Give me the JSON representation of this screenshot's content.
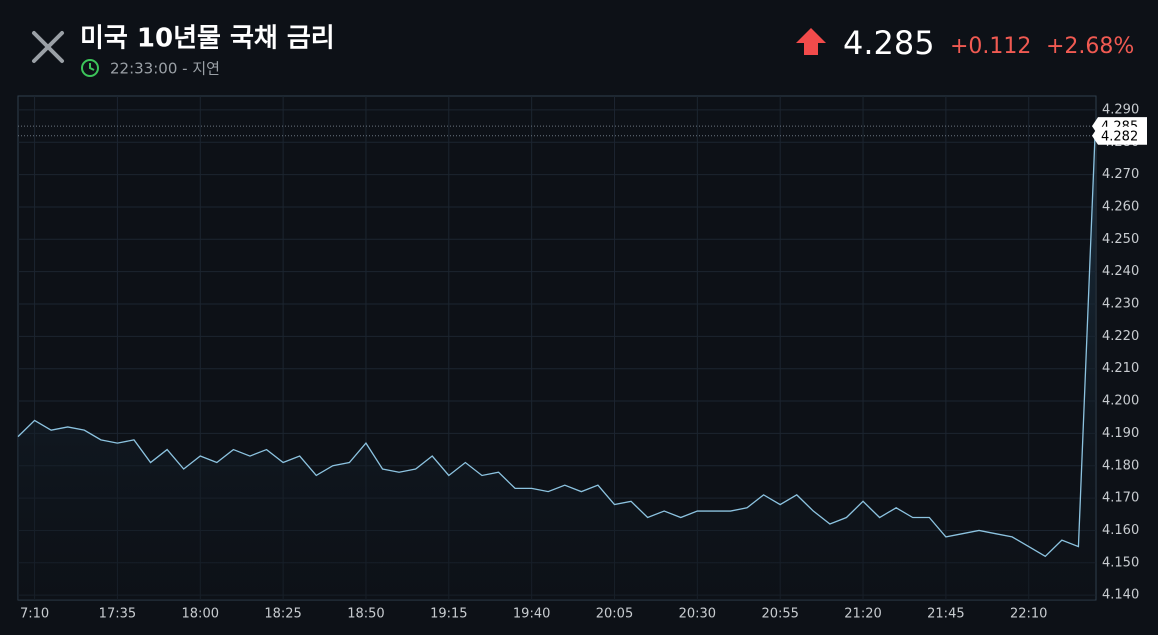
{
  "header": {
    "title": "미국 10년물 국채 금리",
    "time": "22:33:00 - 지연",
    "price": "4.285",
    "change": "+0.112",
    "change_pct": "+2.68%"
  },
  "chart_data": {
    "type": "line",
    "color": "#8cc3e0",
    "categories": [
      null,
      "7:10",
      null,
      null,
      null,
      null,
      "17:35",
      null,
      null,
      null,
      null,
      "18:00",
      null,
      null,
      null,
      null,
      "18:25",
      null,
      null,
      null,
      null,
      "18:50",
      null,
      null,
      null,
      null,
      "19:15",
      null,
      null,
      null,
      null,
      "19:40",
      null,
      null,
      null,
      null,
      "20:05",
      null,
      null,
      null,
      null,
      "20:30",
      null,
      null,
      null,
      null,
      "20:55",
      null,
      null,
      null,
      null,
      "21:20",
      null,
      null,
      null,
      null,
      "21:45",
      null,
      null,
      null,
      null,
      "22:10",
      null,
      null,
      null,
      null
    ],
    "values": [
      4.189,
      4.194,
      4.191,
      4.192,
      4.191,
      4.188,
      4.187,
      4.188,
      4.181,
      4.185,
      4.179,
      4.183,
      4.181,
      4.185,
      4.183,
      4.185,
      4.181,
      4.183,
      4.177,
      4.18,
      4.181,
      4.187,
      4.179,
      4.178,
      4.179,
      4.183,
      4.177,
      4.181,
      4.177,
      4.178,
      4.173,
      4.173,
      4.172,
      4.174,
      4.172,
      4.174,
      4.168,
      4.169,
      4.164,
      4.166,
      4.164,
      4.166,
      4.166,
      4.166,
      4.167,
      4.171,
      4.168,
      4.171,
      4.166,
      4.162,
      4.164,
      4.169,
      4.164,
      4.167,
      4.164,
      4.164,
      4.158,
      4.159,
      4.16,
      4.159,
      4.158,
      4.155,
      4.152,
      4.157,
      4.155,
      4.282
    ],
    "ylim": [
      4.1385,
      4.2943
    ],
    "yticks": [
      {
        "value": 4.14,
        "label": "4.140"
      },
      {
        "value": 4.15,
        "label": "4.150"
      },
      {
        "value": 4.16,
        "label": "4.160"
      },
      {
        "value": 4.17,
        "label": "4.170"
      },
      {
        "value": 4.18,
        "label": "4.180"
      },
      {
        "value": 4.19,
        "label": "4.190"
      },
      {
        "value": 4.2,
        "label": "4.200"
      },
      {
        "value": 4.21,
        "label": "4.210"
      },
      {
        "value": 4.22,
        "label": "4.220"
      },
      {
        "value": 4.23,
        "label": "4.230"
      },
      {
        "value": 4.24,
        "label": "4.240"
      },
      {
        "value": 4.25,
        "label": "4.250"
      },
      {
        "value": 4.26,
        "label": "4.260"
      },
      {
        "value": 4.27,
        "label": "4.270"
      },
      {
        "value": 4.28,
        "label": "4.280"
      },
      {
        "value": 4.29,
        "label": "4.290"
      }
    ],
    "grid": true,
    "price_markers": [
      {
        "value": 4.285,
        "label": "4.285"
      },
      {
        "value": 4.282,
        "label": "4.282"
      }
    ]
  }
}
